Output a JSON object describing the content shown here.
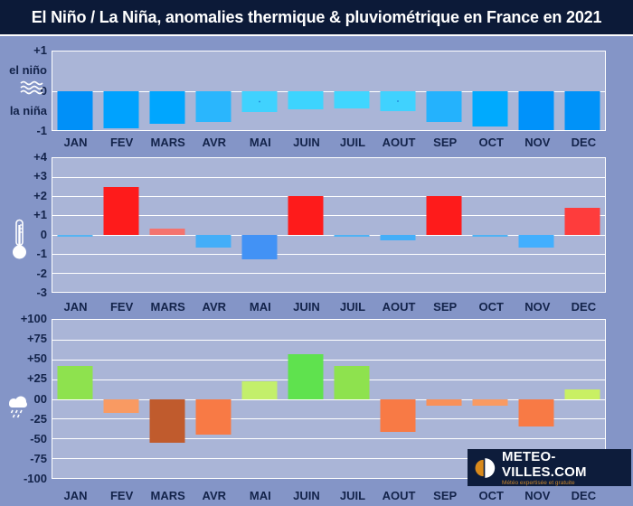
{
  "title": "El Niño / La Niña, anomalies thermique & pluviométrique en France en 2021",
  "months": [
    "JAN",
    "FEV",
    "MARS",
    "AVR",
    "MAI",
    "JUIN",
    "JUIL",
    "AOUT",
    "SEP",
    "OCT",
    "NOV",
    "DEC"
  ],
  "logo": {
    "title": "METEO-VILLES.COM",
    "tagline": "Météo expertisée et gratuite"
  },
  "colors": {
    "page_background": "#8495C7",
    "plot_background": "#AAB5D7",
    "title_background": "#0C1A38",
    "label_text": "#13234A",
    "gridline": "#FFFFFF",
    "logo_background": "#0D1C3B",
    "logo_accent": "#D98A1C"
  },
  "chart_data": [
    {
      "type": "bar",
      "name": "enso-index",
      "categories": [
        "JAN",
        "FEV",
        "MARS",
        "AVR",
        "MAI",
        "JUIN",
        "JUIL",
        "AOUT",
        "SEP",
        "OCT",
        "NOV",
        "DEC"
      ],
      "values": [
        -1,
        -0.95,
        -0.85,
        -0.8,
        -0.55,
        -0.48,
        -0.45,
        -0.52,
        -0.8,
        -0.9,
        -1,
        -1
      ],
      "bar_colors": [
        "#0090F8",
        "#00A2FE",
        "#00A6FE",
        "#2AB6FD",
        "#40D2FE",
        "#3DD4FE",
        "#40D6FE",
        "#40D2FE",
        "#24B2FD",
        "#00AAFE",
        "#0092FA",
        "#0092F8"
      ],
      "dotted": [
        false,
        false,
        false,
        false,
        true,
        false,
        false,
        true,
        false,
        false,
        false,
        false
      ],
      "ylim": [
        -1,
        1
      ],
      "grid": true,
      "ticks": [
        {
          "value": 1,
          "label": "+1"
        },
        {
          "value": 0,
          "label": "0"
        },
        {
          "value": -1,
          "label": "-1"
        }
      ],
      "zone_labels": [
        {
          "value": 0.5,
          "label": "el niño"
        },
        {
          "value": -0.5,
          "label": "la niña"
        }
      ],
      "icon": "waves-icon"
    },
    {
      "type": "bar",
      "name": "temperature-anomaly",
      "categories": [
        "JAN",
        "FEV",
        "MARS",
        "AVR",
        "MAI",
        "JUIN",
        "JUIL",
        "AOUT",
        "SEP",
        "OCT",
        "NOV",
        "DEC"
      ],
      "values": [
        -0.1,
        2.5,
        0.3,
        -0.7,
        -1.3,
        2,
        -0.1,
        -0.3,
        2,
        -0.1,
        -0.7,
        1.4
      ],
      "bar_colors": [
        "#55B4F2",
        "#FE1B1B",
        "#F4736E",
        "#44AEF8",
        "#4292F5",
        "#FE1B1B",
        "#4FB2F4",
        "#44AEF8",
        "#FE1B1B",
        "#4FB2F4",
        "#42AFFE",
        "#FE3C3C"
      ],
      "dotted": [
        false,
        false,
        false,
        false,
        false,
        false,
        false,
        false,
        false,
        false,
        false,
        false
      ],
      "ylim": [
        -3,
        4
      ],
      "grid": true,
      "ticks": [
        {
          "value": 4,
          "label": "+4"
        },
        {
          "value": 3,
          "label": "+3"
        },
        {
          "value": 2,
          "label": "+2"
        },
        {
          "value": 1,
          "label": "+1"
        },
        {
          "value": 0,
          "label": "0"
        },
        {
          "value": -1,
          "label": "-1"
        },
        {
          "value": -2,
          "label": "-2"
        },
        {
          "value": -3,
          "label": "-3"
        }
      ],
      "zone_labels": [],
      "icon": "thermometer-icon"
    },
    {
      "type": "bar",
      "name": "precipitation-anomaly",
      "categories": [
        "JAN",
        "FEV",
        "MARS",
        "AVR",
        "MAI",
        "JUIN",
        "JUIL",
        "AOUT",
        "SEP",
        "OCT",
        "NOV",
        "DEC"
      ],
      "values": [
        42,
        -18,
        -55,
        -45,
        22,
        57,
        42,
        -42,
        -8,
        -8,
        -35,
        12
      ],
      "bar_colors": [
        "#8EE24E",
        "#F99A62",
        "#C05B2D",
        "#F87A45",
        "#C3EF6B",
        "#5FE24E",
        "#8EE24E",
        "#F87A45",
        "#F89059",
        "#F99A62",
        "#F87A45",
        "#C9F063"
      ],
      "dotted": [
        false,
        false,
        false,
        false,
        false,
        false,
        false,
        false,
        false,
        false,
        false,
        false
      ],
      "ylim": [
        -100,
        100
      ],
      "grid": true,
      "ticks": [
        {
          "value": 100,
          "label": "+100"
        },
        {
          "value": 75,
          "label": "+75"
        },
        {
          "value": 50,
          "label": "+50"
        },
        {
          "value": 25,
          "label": "+25"
        },
        {
          "value": 0,
          "label": "00"
        },
        {
          "value": -25,
          "label": "-25"
        },
        {
          "value": -50,
          "label": "-50"
        },
        {
          "value": -75,
          "label": "-75"
        },
        {
          "value": -100,
          "label": "-100"
        }
      ],
      "zone_labels": [],
      "icon": "rain-cloud-icon"
    }
  ]
}
